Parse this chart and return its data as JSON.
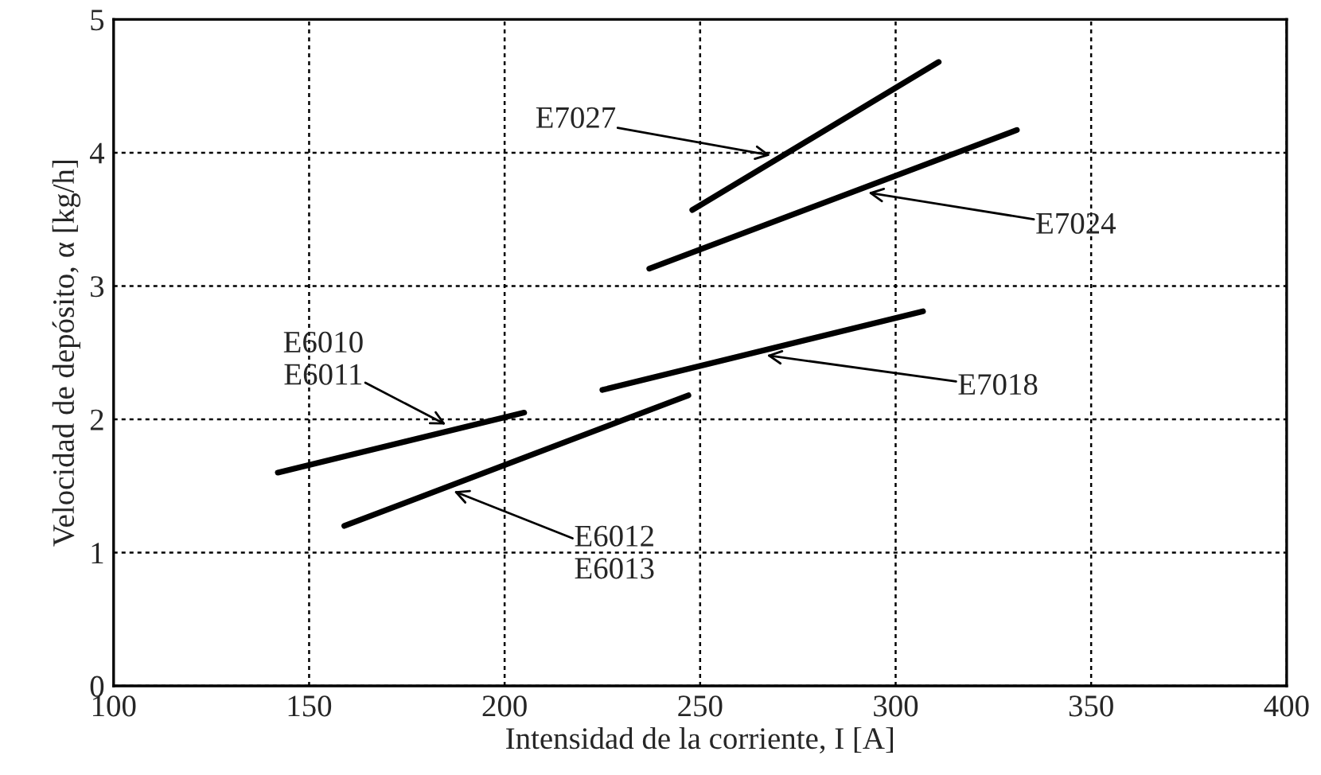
{
  "chart_data": {
    "type": "line",
    "xlabel": "Intensidad de la corriente, I [A]",
    "ylabel": "Velocidad de depósito, α [kg/h]",
    "xlim": [
      100,
      400
    ],
    "xticks": [
      100,
      150,
      200,
      250,
      300,
      350,
      400
    ],
    "ylim": [
      0,
      5
    ],
    "yticks": [
      0,
      1,
      2,
      3,
      4,
      5
    ],
    "grid": true,
    "marker": "none",
    "line_style": "solid",
    "series": [
      {
        "color": "#000000",
        "x": [
          142,
          205
        ],
        "values": [
          1.6,
          2.05
        ]
      },
      {
        "color": "#000000",
        "x": [
          159,
          247
        ],
        "values": [
          1.2,
          2.18
        ]
      },
      {
        "color": "#000000",
        "x": [
          225,
          307
        ],
        "values": [
          2.22,
          2.81
        ]
      },
      {
        "color": "#000000",
        "x": [
          237,
          331
        ],
        "values": [
          3.13,
          4.17
        ]
      },
      {
        "color": "#000000",
        "x": [
          248,
          311
        ],
        "values": [
          3.57,
          4.68
        ]
      }
    ],
    "annotations": [
      {
        "text": "E6010\nE6011",
        "x": 185,
        "y": 1.96
      },
      {
        "text": "E6012\nE6013",
        "x": 187,
        "y": 1.46
      },
      {
        "text": "E7018",
        "x": 267,
        "y": 2.48
      },
      {
        "text": "E7024",
        "x": 293,
        "y": 3.7
      },
      {
        "text": "E7027",
        "x": 268,
        "y": 3.98
      }
    ]
  }
}
